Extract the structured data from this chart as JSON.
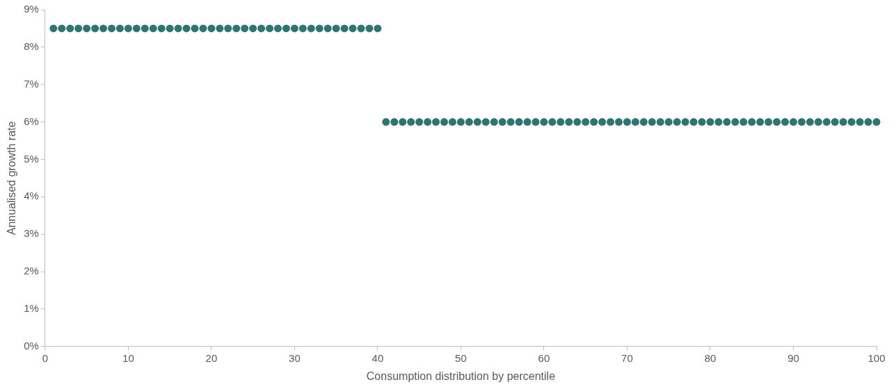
{
  "chart_data": {
    "type": "scatter",
    "xlabel": "Consumption distribution by percentile",
    "ylabel": "Annualised growth rate",
    "x": [
      1,
      2,
      3,
      4,
      5,
      6,
      7,
      8,
      9,
      10,
      11,
      12,
      13,
      14,
      15,
      16,
      17,
      18,
      19,
      20,
      21,
      22,
      23,
      24,
      25,
      26,
      27,
      28,
      29,
      30,
      31,
      32,
      33,
      34,
      35,
      36,
      37,
      38,
      39,
      40,
      41,
      42,
      43,
      44,
      45,
      46,
      47,
      48,
      49,
      50,
      51,
      52,
      53,
      54,
      55,
      56,
      57,
      58,
      59,
      60,
      61,
      62,
      63,
      64,
      65,
      66,
      67,
      68,
      69,
      70,
      71,
      72,
      73,
      74,
      75,
      76,
      77,
      78,
      79,
      80,
      81,
      82,
      83,
      84,
      85,
      86,
      87,
      88,
      89,
      90,
      91,
      92,
      93,
      94,
      95,
      96,
      97,
      98,
      99,
      100
    ],
    "series": [
      {
        "color": "#2e7571",
        "values": [
          8.5,
          8.5,
          8.5,
          8.5,
          8.5,
          8.5,
          8.5,
          8.5,
          8.5,
          8.5,
          8.5,
          8.5,
          8.5,
          8.5,
          8.5,
          8.5,
          8.5,
          8.5,
          8.5,
          8.5,
          8.5,
          8.5,
          8.5,
          8.5,
          8.5,
          8.5,
          8.5,
          8.5,
          8.5,
          8.5,
          8.5,
          8.5,
          8.5,
          8.5,
          8.5,
          8.5,
          8.5,
          8.5,
          8.5,
          8.5,
          6,
          6,
          6,
          6,
          6,
          6,
          6,
          6,
          6,
          6,
          6,
          6,
          6,
          6,
          6,
          6,
          6,
          6,
          6,
          6,
          6,
          6,
          6,
          6,
          6,
          6,
          6,
          6,
          6,
          6,
          6,
          6,
          6,
          6,
          6,
          6,
          6,
          6,
          6,
          6,
          6,
          6,
          6,
          6,
          6,
          6,
          6,
          6,
          6,
          6,
          6,
          6,
          6,
          6,
          6,
          6,
          6,
          6,
          6,
          6
        ]
      }
    ],
    "xlim": [
      0,
      100
    ],
    "xticks": [
      0,
      10,
      20,
      30,
      40,
      50,
      60,
      70,
      80,
      90,
      100
    ],
    "ylim": [
      0,
      9
    ],
    "yticks": [
      {
        "value": 0,
        "label": "0%"
      },
      {
        "value": 1,
        "label": "1%"
      },
      {
        "value": 2,
        "label": "2%"
      },
      {
        "value": 3,
        "label": "3%"
      },
      {
        "value": 4,
        "label": "4%"
      },
      {
        "value": 5,
        "label": "5%"
      },
      {
        "value": 6,
        "label": "6%"
      },
      {
        "value": 7,
        "label": "7%"
      },
      {
        "value": 8,
        "label": "8%"
      },
      {
        "value": 9,
        "label": "9%"
      }
    ],
    "marker": "circle",
    "legend": false,
    "grid": false
  }
}
